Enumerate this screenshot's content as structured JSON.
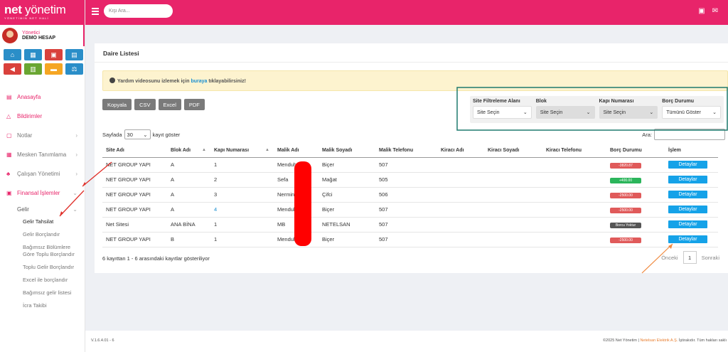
{
  "brand": {
    "name_a": "net",
    "name_b": "yönetim",
    "tagline": "YÖNETİMİN NET HALİ"
  },
  "user": {
    "role": "Yönetici",
    "name": "DEMO HESAP"
  },
  "quick_icons": [
    {
      "icon": "home-icon",
      "color": "#2a8ec8",
      "glyph": "⌂"
    },
    {
      "icon": "keyboard-icon",
      "color": "#2a8ec8",
      "glyph": "▦"
    },
    {
      "icon": "money-icon",
      "color": "#d9413c",
      "glyph": "▣"
    },
    {
      "icon": "contacts-icon",
      "color": "#2a8ec8",
      "glyph": "▤"
    },
    {
      "icon": "megaphone-icon",
      "color": "#d9413c",
      "glyph": "◀"
    },
    {
      "icon": "cash-register-icon",
      "color": "#6aa632",
      "glyph": "▥"
    },
    {
      "icon": "chat-icon",
      "color": "#f5a623",
      "glyph": "▬"
    },
    {
      "icon": "scale-icon",
      "color": "#2a8ec8",
      "glyph": "⚖"
    }
  ],
  "menu": {
    "anasayfa": "Anasayfa",
    "bildirimler": "Bildirimler",
    "notlar": "Notlar",
    "mesken": "Mesken Tanımlama",
    "calisan": "Çalışan Yönetimi",
    "finansal": "Finansal İşlemler",
    "gelir": "Gelir",
    "gelir_tahsilat": "Gelir Tahsilat",
    "gelir_borclandir": "Gelir Borçlandır",
    "bagimsiz_toplu": "Bağımsız Bölümlere Göre Toplu Borçlandır",
    "toplu_gelir": "Toplu Gelir Borçlandır",
    "excel_borc": "Excel ile borçlandır",
    "bagimsiz_gelir": "Bağımsız gelir listesi",
    "icra": "İcra Takibi"
  },
  "topbar": {
    "search_placeholder": "Kişi Ara..."
  },
  "page": {
    "title": "Daire Listesi",
    "alert_pre": "Yardım videosunu izlemek için ",
    "alert_link": "buraya",
    "alert_post": " tıklayabilirsiniz!"
  },
  "export_buttons": [
    "Kopyala",
    "CSV",
    "Excel",
    "PDF"
  ],
  "filters": {
    "site": {
      "label": "Site Filtreleme Alanı",
      "value": "Site Seçin"
    },
    "blok": {
      "label": "Blok",
      "value": "Site Seçin"
    },
    "kapi": {
      "label": "Kapı Numarası",
      "value": "Site Seçin"
    },
    "borc": {
      "label": "Borç Durumu",
      "value": "Tümünü Göster"
    }
  },
  "length": {
    "pre": "Sayfada",
    "value": "30",
    "post": "kayıt göster"
  },
  "search_label": "Ara:",
  "table": {
    "headers": [
      "Site Adı",
      "Blok Adı",
      "Kapı Numarası",
      "Malik Adı",
      "Malik Soyadı",
      "Malik Telefonu",
      "Kiracı Adı",
      "Kiracı Soyadı",
      "Kiracı Telefonu",
      "Borç Durumu",
      "İşlem"
    ],
    "action_label": "Detaylar",
    "rows": [
      {
        "site": "NET GROUP YAPI",
        "blok": "A",
        "kapi": "1",
        "ad": "Menduh",
        "soyad": "Biçer",
        "tel": "507",
        "borc": "-3820.87",
        "borc_color": "#e05a5a"
      },
      {
        "site": "NET GROUP YAPI",
        "blok": "A",
        "kapi": "2",
        "ad": "Sefa",
        "soyad": "Mağat",
        "tel": "505",
        "borc": "+400.00",
        "borc_color": "#2bb55b"
      },
      {
        "site": "NET GROUP YAPI",
        "blok": "A",
        "kapi": "3",
        "ad": "Nermin",
        "soyad": "Çifci",
        "tel": "506",
        "borc": "-2500.00",
        "borc_color": "#e05a5a"
      },
      {
        "site": "NET GROUP YAPI",
        "blok": "A",
        "kapi": "4",
        "ad": "Menduh",
        "soyad": "Biçer",
        "tel": "507",
        "borc": "-2500.00",
        "borc_color": "#e05a5a"
      },
      {
        "site": "Net Sitesi",
        "blok": "ANA BİNA",
        "kapi": "1",
        "ad": "MB",
        "soyad": "NETELSAN",
        "tel": "507",
        "borc": "Borcu Yoktur",
        "borc_color": "#555555"
      },
      {
        "site": "NET GROUP YAPI",
        "blok": "B",
        "kapi": "1",
        "ad": "Menduh",
        "soyad": "Biçer",
        "tel": "507",
        "borc": "-2500.00",
        "borc_color": "#e05a5a"
      }
    ]
  },
  "info": "6 kayıttan 1 - 6 arasındaki kayıtlar gösteriliyor",
  "pager": {
    "prev": "Önceki",
    "page": "1",
    "next": "Sonraki"
  },
  "footer": {
    "version": "V.1.6.4.01 - 6",
    "copy_a": "©2025 Net Yönetim | ",
    "copy_b": "Netelsan Elektrik A.Ş.",
    "copy_c": " İştirakıdır. Tüm hakları saklı"
  }
}
